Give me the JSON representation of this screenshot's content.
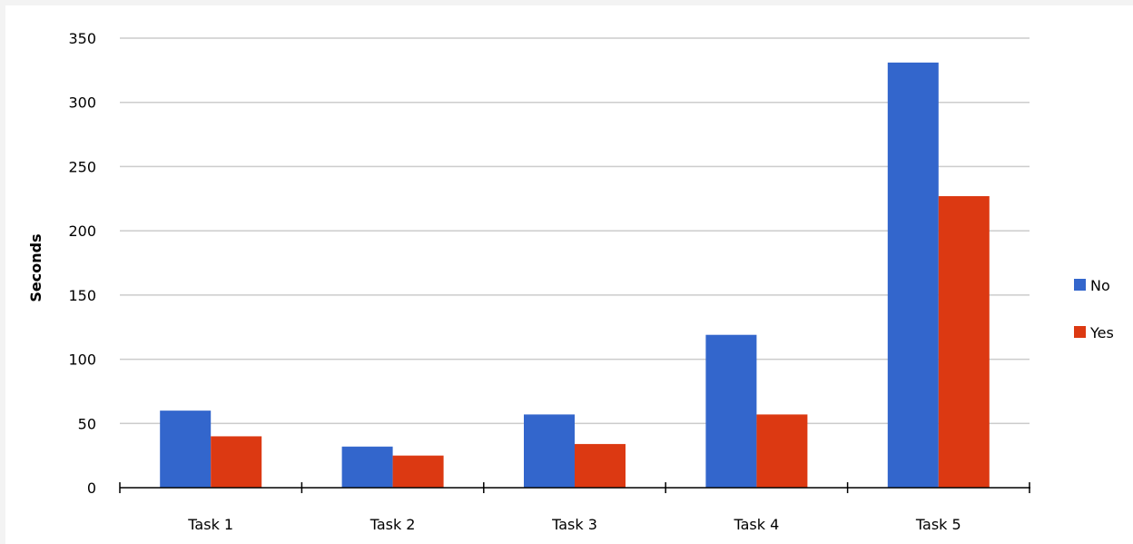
{
  "chart_data": {
    "type": "bar",
    "categories": [
      "Task 1",
      "Task 2",
      "Task 3",
      "Task 4",
      "Task 5"
    ],
    "series": [
      {
        "name": "No",
        "color": "#3366cc",
        "values": [
          60,
          32,
          57,
          119,
          331
        ]
      },
      {
        "name": "Yes",
        "color": "#dc3912",
        "values": [
          40,
          25,
          34,
          57,
          227
        ]
      }
    ],
    "title": "",
    "xlabel": "",
    "ylabel": "Seconds",
    "ylim": [
      0,
      350
    ],
    "yticks": [
      "0",
      "50",
      "100",
      "150",
      "200",
      "250",
      "300",
      "350"
    ],
    "grid": true,
    "legend_position": "right"
  }
}
